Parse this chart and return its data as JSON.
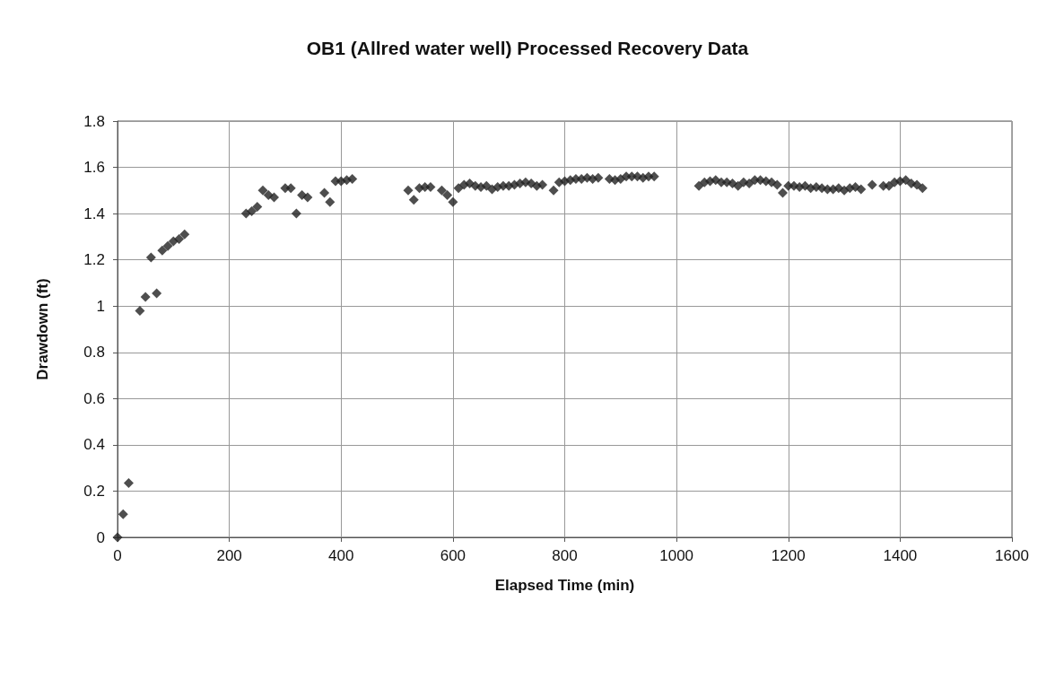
{
  "chart_data": {
    "type": "scatter",
    "title": "OB1 (Allred water well) Processed Recovery Data",
    "xlabel": "Elapsed Time (min)",
    "ylabel": "Drawdown (ft)",
    "x": [
      0,
      10,
      20,
      40,
      50,
      60,
      70,
      80,
      90,
      100,
      110,
      120,
      230,
      240,
      250,
      260,
      270,
      280,
      300,
      310,
      320,
      330,
      340,
      370,
      380,
      390,
      400,
      410,
      420,
      520,
      530,
      540,
      550,
      560,
      580,
      590,
      600,
      610,
      620,
      630,
      640,
      650,
      660,
      670,
      680,
      690,
      700,
      710,
      720,
      730,
      740,
      750,
      760,
      780,
      790,
      800,
      810,
      820,
      830,
      840,
      850,
      860,
      880,
      890,
      900,
      910,
      920,
      930,
      940,
      950,
      960,
      1040,
      1050,
      1060,
      1070,
      1080,
      1090,
      1100,
      1110,
      1120,
      1130,
      1140,
      1150,
      1160,
      1170,
      1180,
      1190,
      1200,
      1210,
      1220,
      1230,
      1240,
      1250,
      1260,
      1270,
      1280,
      1290,
      1300,
      1310,
      1320,
      1330,
      1350,
      1370,
      1380,
      1390,
      1400,
      1410,
      1420,
      1430,
      1440
    ],
    "series": [
      {
        "color": "#222222",
        "values": [
          0,
          0.1,
          0.235,
          0.98,
          1.04,
          1.21,
          1.055,
          1.24,
          1.26,
          1.28,
          1.29,
          1.31,
          1.4,
          1.41,
          1.43,
          1.5,
          1.48,
          1.47,
          1.51,
          1.51,
          1.4,
          1.48,
          1.47,
          1.49,
          1.45,
          1.54,
          1.54,
          1.545,
          1.55,
          1.5,
          1.46,
          1.51,
          1.515,
          1.515,
          1.5,
          1.48,
          1.45,
          1.51,
          1.525,
          1.53,
          1.52,
          1.515,
          1.52,
          1.505,
          1.515,
          1.52,
          1.52,
          1.525,
          1.53,
          1.535,
          1.53,
          1.52,
          1.525,
          1.5,
          1.535,
          1.54,
          1.545,
          1.55,
          1.55,
          1.555,
          1.55,
          1.555,
          1.55,
          1.545,
          1.55,
          1.56,
          1.56,
          1.56,
          1.555,
          1.56,
          1.56,
          1.52,
          1.535,
          1.54,
          1.545,
          1.535,
          1.535,
          1.53,
          1.52,
          1.535,
          1.53,
          1.545,
          1.545,
          1.54,
          1.535,
          1.525,
          1.49,
          1.52,
          1.52,
          1.515,
          1.52,
          1.51,
          1.515,
          1.51,
          1.505,
          1.505,
          1.51,
          1.5,
          1.51,
          1.515,
          1.505,
          1.525,
          1.52,
          1.52,
          1.535,
          1.54,
          1.545,
          1.53,
          1.525,
          1.51
        ]
      }
    ],
    "xlim": [
      0,
      1600
    ],
    "xticks": [
      0,
      200,
      400,
      600,
      800,
      1000,
      1200,
      1400,
      1600
    ],
    "ylim": [
      0,
      1.8
    ],
    "yticks": [
      0,
      0.2,
      0.4,
      0.6,
      0.8,
      1,
      1.2,
      1.4,
      1.6,
      1.8
    ],
    "grid": true,
    "marker": "diamond"
  }
}
